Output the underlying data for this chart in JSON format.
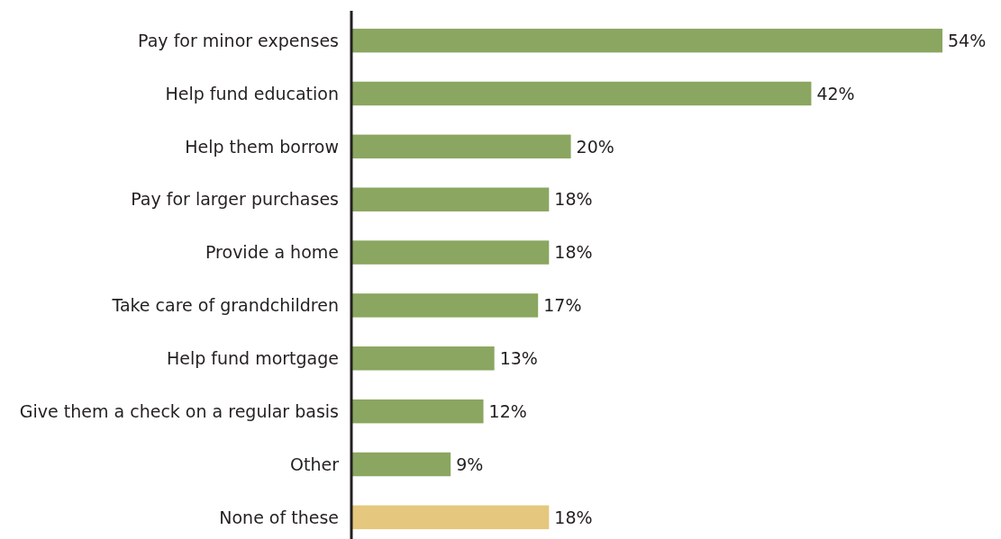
{
  "chart_data": {
    "type": "bar",
    "orientation": "horizontal",
    "categories": [
      "Pay for minor expenses",
      "Help fund education",
      "Help them borrow",
      "Pay for larger purchases",
      "Provide a home",
      "Take care of grandchildren",
      "Help fund mortgage",
      "Give them a check on a regular basis",
      "Other",
      "None of these"
    ],
    "values": [
      54,
      42,
      20,
      18,
      18,
      17,
      13,
      12,
      9,
      18
    ],
    "colors": [
      "#8aa660",
      "#8aa660",
      "#8aa660",
      "#8aa660",
      "#8aa660",
      "#8aa660",
      "#8aa660",
      "#8aa660",
      "#8aa660",
      "#e5c77d"
    ],
    "value_labels": [
      "54%",
      "42%",
      "20%",
      "18%",
      "18%",
      "17%",
      "13%",
      "12%",
      "9%",
      "18%"
    ]
  }
}
